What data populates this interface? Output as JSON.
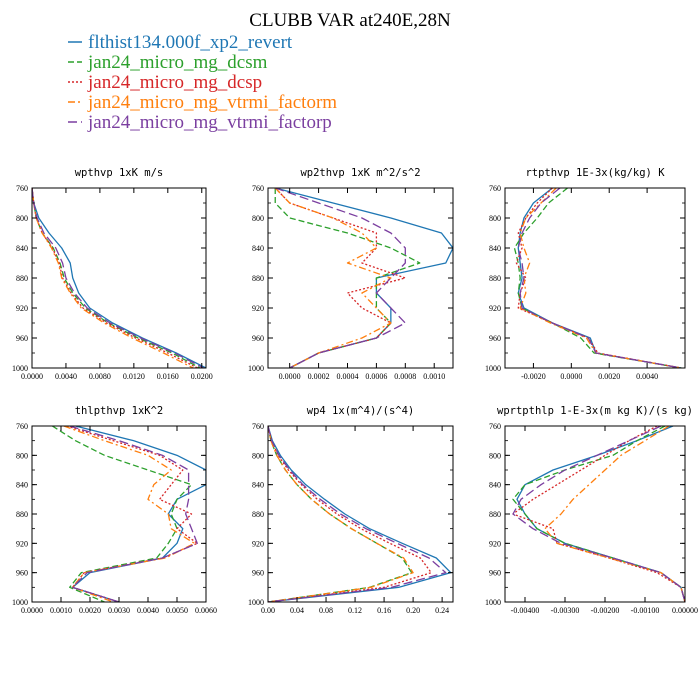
{
  "title": "CLUBB VAR at240E,28N",
  "legend": [
    {
      "label": "flthist134.000f_xp2_revert",
      "color": "#1f77b4",
      "dash": "solid"
    },
    {
      "label": "jan24_micro_mg_dcsm",
      "color": "#2ca02c",
      "dash": "dashed"
    },
    {
      "label": "jan24_micro_mg_dcsp",
      "color": "#d62728",
      "dash": "dotted"
    },
    {
      "label": "jan24_micro_mg_vtrmi_factorm",
      "color": "#ff7f0e",
      "dash": "dashdot"
    },
    {
      "label": "jan24_micro_mg_vtrmi_factorp",
      "color": "#7b3fa0",
      "dash": "longdash"
    }
  ],
  "chart_data": [
    {
      "type": "line",
      "title": "wpthvp  1xK m/s",
      "xlim": [
        0,
        0.0205
      ],
      "ylim": [
        760,
        1000
      ],
      "x_ticks": [
        "0.0000",
        "0.0040",
        "0.0080",
        "0.0120",
        "0.0160",
        "0.0200"
      ],
      "x_tick_values": [
        0,
        0.004,
        0.008,
        0.012,
        0.016,
        0.02
      ],
      "y_ticks": [
        760,
        800,
        840,
        880,
        920,
        960,
        1000
      ],
      "levels": [
        760,
        780,
        800,
        820,
        840,
        860,
        880,
        900,
        920,
        940,
        960,
        980,
        1000
      ],
      "series": [
        {
          "name": "flthist134.000f_xp2_revert",
          "values": [
            0.0,
            0.0002,
            0.0008,
            0.002,
            0.0035,
            0.0045,
            0.0048,
            0.0055,
            0.0068,
            0.0095,
            0.013,
            0.017,
            0.0205
          ]
        },
        {
          "name": "jan24_micro_mg_dcsm",
          "values": [
            0.0,
            0.0002,
            0.0005,
            0.0012,
            0.0025,
            0.0033,
            0.0038,
            0.0048,
            0.0063,
            0.009,
            0.0125,
            0.0165,
            0.0198
          ]
        },
        {
          "name": "jan24_micro_mg_dcsp",
          "values": [
            0.0,
            0.0002,
            0.0005,
            0.0012,
            0.0024,
            0.0032,
            0.0036,
            0.0046,
            0.006,
            0.0088,
            0.0122,
            0.016,
            0.0195
          ]
        },
        {
          "name": "jan24_micro_mg_vtrmi_factorm",
          "values": [
            0.0,
            0.0002,
            0.0005,
            0.0012,
            0.0023,
            0.0031,
            0.0035,
            0.0045,
            0.0058,
            0.0085,
            0.0118,
            0.0155,
            0.019
          ]
        },
        {
          "name": "jan24_micro_mg_vtrmi_factorp",
          "values": [
            0.0,
            0.0002,
            0.0006,
            0.0014,
            0.0028,
            0.0036,
            0.004,
            0.005,
            0.0065,
            0.0092,
            0.0128,
            0.0168,
            0.0202
          ]
        }
      ]
    },
    {
      "type": "line",
      "title": "wp2thvp  1xK m^2/s^2",
      "xlim": [
        -0.00015,
        0.00113
      ],
      "ylim": [
        760,
        1000
      ],
      "x_ticks": [
        "0.0000",
        "0.0002",
        "0.0004",
        "0.0006",
        "0.0008",
        "0.0010"
      ],
      "x_tick_values": [
        0,
        0.0002,
        0.0004,
        0.0006,
        0.0008,
        0.001
      ],
      "y_ticks": [
        760,
        800,
        840,
        880,
        920,
        960,
        1000
      ],
      "levels": [
        760,
        780,
        800,
        820,
        840,
        860,
        880,
        900,
        920,
        940,
        960,
        980,
        1000
      ],
      "series": [
        {
          "name": "flthist134.000f_xp2_revert",
          "values": [
            -0.0001,
            0.0003,
            0.0007,
            0.00105,
            0.00113,
            0.00108,
            0.0006,
            0.0006,
            0.0007,
            0.0007,
            0.0006,
            0.0002,
            0.0
          ]
        },
        {
          "name": "jan24_micro_mg_dcsm",
          "values": [
            -0.0001,
            -0.0001,
            0.0,
            0.0004,
            0.0007,
            0.0009,
            0.0006,
            0.0006,
            0.0006,
            0.0007,
            0.0006,
            0.0002,
            0.0
          ]
        },
        {
          "name": "jan24_micro_mg_dcsp",
          "values": [
            -0.0001,
            0.0,
            0.0003,
            0.0006,
            0.0006,
            0.0005,
            0.0008,
            0.0004,
            0.0005,
            0.0007,
            0.0006,
            0.0002,
            0.0
          ]
        },
        {
          "name": "jan24_micro_mg_vtrmi_factorm",
          "values": [
            -0.0001,
            0.0,
            0.0003,
            0.0005,
            0.0006,
            0.0004,
            0.0007,
            0.0005,
            0.0006,
            0.0007,
            0.0005,
            0.0002,
            0.0
          ]
        },
        {
          "name": "jan24_micro_mg_vtrmi_factorp",
          "values": [
            -0.0001,
            0.0002,
            0.0005,
            0.0007,
            0.0008,
            0.0008,
            0.0007,
            0.0006,
            0.0007,
            0.0008,
            0.0006,
            0.0002,
            0.0
          ]
        }
      ]
    },
    {
      "type": "line",
      "title": "rtpthvp  1E-3x(kg/kg) K",
      "xlim": [
        -0.0035,
        0.006
      ],
      "ylim": [
        760,
        1000
      ],
      "x_ticks": [
        "-0.0020",
        "0.0000",
        "0.0020",
        "0.0040"
      ],
      "x_tick_values": [
        -0.002,
        0,
        0.002,
        0.004
      ],
      "y_ticks": [
        760,
        800,
        840,
        880,
        920,
        960,
        1000
      ],
      "levels": [
        760,
        780,
        800,
        820,
        840,
        860,
        880,
        900,
        920,
        940,
        960,
        980,
        1000
      ],
      "series": [
        {
          "name": "flthist134.000f_xp2_revert",
          "values": [
            -0.001,
            -0.002,
            -0.0025,
            -0.0027,
            -0.0028,
            -0.0027,
            -0.0026,
            -0.0028,
            -0.0025,
            -0.001,
            0.001,
            0.0013,
            0.0058
          ]
        },
        {
          "name": "jan24_micro_mg_dcsm",
          "values": [
            -0.0002,
            -0.0012,
            -0.0018,
            -0.0025,
            -0.003,
            -0.0028,
            -0.0027,
            -0.0028,
            -0.0026,
            -0.001,
            0.0005,
            0.0012,
            0.0058
          ]
        },
        {
          "name": "jan24_micro_mg_dcsp",
          "values": [
            -0.001,
            -0.0018,
            -0.0024,
            -0.0028,
            -0.0026,
            -0.0029,
            -0.0024,
            -0.0027,
            -0.0028,
            -0.001,
            0.0009,
            0.0014,
            0.0058
          ]
        },
        {
          "name": "jan24_micro_mg_vtrmi_factorm",
          "values": [
            -0.0008,
            -0.0016,
            -0.0024,
            -0.0027,
            -0.0025,
            -0.0022,
            -0.0025,
            -0.0024,
            -0.0027,
            -0.0011,
            0.0008,
            0.0013,
            0.0058
          ]
        },
        {
          "name": "jan24_micro_mg_vtrmi_factorp",
          "values": [
            -0.0006,
            -0.0016,
            -0.0022,
            -0.0026,
            -0.0028,
            -0.0026,
            -0.0025,
            -0.0027,
            -0.0026,
            -0.001,
            0.0009,
            0.0013,
            0.0058
          ]
        }
      ]
    },
    {
      "type": "line",
      "title": "thlpthvp  1xK^2",
      "xlim": [
        0,
        0.006
      ],
      "ylim": [
        760,
        1000
      ],
      "x_ticks": [
        "0.0000",
        "0.0010",
        "0.0020",
        "0.0030",
        "0.0040",
        "0.0050",
        "0.0060"
      ],
      "x_tick_values": [
        0,
        0.001,
        0.002,
        0.003,
        0.004,
        0.005,
        0.006
      ],
      "y_ticks": [
        760,
        800,
        840,
        880,
        920,
        960,
        1000
      ],
      "levels": [
        760,
        780,
        800,
        820,
        840,
        860,
        880,
        900,
        920,
        940,
        960,
        980,
        1000
      ],
      "series": [
        {
          "name": "flthist134.000f_xp2_revert",
          "values": [
            0.0015,
            0.0035,
            0.005,
            0.006,
            0.006,
            0.005,
            0.0047,
            0.0052,
            0.005,
            0.0045,
            0.002,
            0.0014,
            0.003
          ]
        },
        {
          "name": "jan24_micro_mg_dcsm",
          "values": [
            0.0007,
            0.0015,
            0.0025,
            0.004,
            0.0055,
            0.005,
            0.0048,
            0.005,
            0.0047,
            0.0043,
            0.0017,
            0.0013,
            0.0025
          ]
        },
        {
          "name": "jan24_micro_mg_dcsp",
          "values": [
            0.0012,
            0.0028,
            0.0044,
            0.0052,
            0.0048,
            0.0044,
            0.0055,
            0.005,
            0.0057,
            0.0045,
            0.0018,
            0.0014,
            0.003
          ]
        },
        {
          "name": "jan24_micro_mg_vtrmi_factorm",
          "values": [
            0.0011,
            0.0025,
            0.004,
            0.0048,
            0.0042,
            0.004,
            0.0047,
            0.0048,
            0.0056,
            0.0046,
            0.0018,
            0.0014,
            0.0028
          ]
        },
        {
          "name": "jan24_micro_mg_vtrmi_factorp",
          "values": [
            0.0013,
            0.003,
            0.0045,
            0.0054,
            0.0054,
            0.0054,
            0.0053,
            0.0055,
            0.0057,
            0.0045,
            0.0019,
            0.0014,
            0.003
          ]
        }
      ]
    },
    {
      "type": "line",
      "title": "wp4  1x(m^4)/(s^4)",
      "xlim": [
        0,
        0.255
      ],
      "ylim": [
        760,
        1000
      ],
      "x_ticks": [
        "0.00",
        "0.04",
        "0.08",
        "0.12",
        "0.16",
        "0.20",
        "0.24"
      ],
      "x_tick_values": [
        0,
        0.04,
        0.08,
        0.12,
        0.16,
        0.2,
        0.24
      ],
      "y_ticks": [
        760,
        800,
        840,
        880,
        920,
        960,
        1000
      ],
      "levels": [
        760,
        780,
        800,
        820,
        840,
        860,
        880,
        900,
        920,
        940,
        960,
        980,
        1000
      ],
      "series": [
        {
          "name": "flthist134.000f_xp2_revert",
          "values": [
            0.0,
            0.006,
            0.017,
            0.032,
            0.052,
            0.078,
            0.106,
            0.14,
            0.185,
            0.232,
            0.252,
            0.18,
            0.0
          ]
        },
        {
          "name": "jan24_micro_mg_dcsm",
          "values": [
            0.0,
            0.004,
            0.012,
            0.024,
            0.04,
            0.06,
            0.085,
            0.115,
            0.15,
            0.185,
            0.198,
            0.14,
            0.0
          ]
        },
        {
          "name": "jan24_micro_mg_dcsp",
          "values": [
            0.0,
            0.005,
            0.014,
            0.028,
            0.046,
            0.068,
            0.095,
            0.128,
            0.168,
            0.21,
            0.225,
            0.16,
            0.0
          ]
        },
        {
          "name": "jan24_micro_mg_vtrmi_factorm",
          "values": [
            0.0,
            0.004,
            0.012,
            0.024,
            0.04,
            0.06,
            0.085,
            0.115,
            0.15,
            0.187,
            0.2,
            0.142,
            0.0
          ]
        },
        {
          "name": "jan24_micro_mg_vtrmi_factorp",
          "values": [
            0.0,
            0.005,
            0.015,
            0.03,
            0.048,
            0.072,
            0.1,
            0.135,
            0.178,
            0.222,
            0.245,
            0.17,
            0.0
          ]
        }
      ]
    },
    {
      "type": "line",
      "title": "wprtpthlp  1-E-3x(m kg K)/(s kg)",
      "xlim": [
        -0.0045,
        0.0
      ],
      "ylim": [
        760,
        1000
      ],
      "x_ticks": [
        "-0.00400",
        "-0.00300",
        "-0.00200",
        "-0.00100",
        "0.00000"
      ],
      "x_tick_values": [
        -0.004,
        -0.003,
        -0.002,
        -0.001,
        0.0
      ],
      "y_ticks": [
        760,
        800,
        840,
        880,
        920,
        960,
        1000
      ],
      "levels": [
        760,
        780,
        800,
        820,
        840,
        860,
        880,
        900,
        920,
        940,
        960,
        980,
        1000
      ],
      "series": [
        {
          "name": "flthist134.000f_xp2_revert",
          "values": [
            -0.0003,
            -0.0012,
            -0.0022,
            -0.0033,
            -0.004,
            -0.0042,
            -0.004,
            -0.0037,
            -0.003,
            -0.0018,
            -0.0006,
            -0.0001,
            0.0
          ]
        },
        {
          "name": "jan24_micro_mg_dcsm",
          "values": [
            -0.0005,
            -0.0012,
            -0.0018,
            -0.003,
            -0.004,
            -0.0043,
            -0.004,
            -0.0037,
            -0.003,
            -0.0018,
            -0.0006,
            -0.0001,
            0.0
          ]
        },
        {
          "name": "jan24_micro_mg_dcsp",
          "values": [
            -0.0007,
            -0.0014,
            -0.002,
            -0.0026,
            -0.0032,
            -0.0038,
            -0.0043,
            -0.0033,
            -0.0032,
            -0.0019,
            -0.0007,
            -0.0001,
            0.0
          ]
        },
        {
          "name": "jan24_micro_mg_vtrmi_factorm",
          "values": [
            -0.0004,
            -0.001,
            -0.0016,
            -0.002,
            -0.0024,
            -0.0028,
            -0.0031,
            -0.0035,
            -0.0032,
            -0.0019,
            -0.0006,
            -0.0001,
            0.0
          ]
        },
        {
          "name": "jan24_micro_mg_vtrmi_factorp",
          "values": [
            -0.0006,
            -0.0014,
            -0.0022,
            -0.003,
            -0.0036,
            -0.0041,
            -0.0043,
            -0.0038,
            -0.0031,
            -0.0018,
            -0.0006,
            -0.0001,
            0.0
          ]
        }
      ]
    }
  ]
}
